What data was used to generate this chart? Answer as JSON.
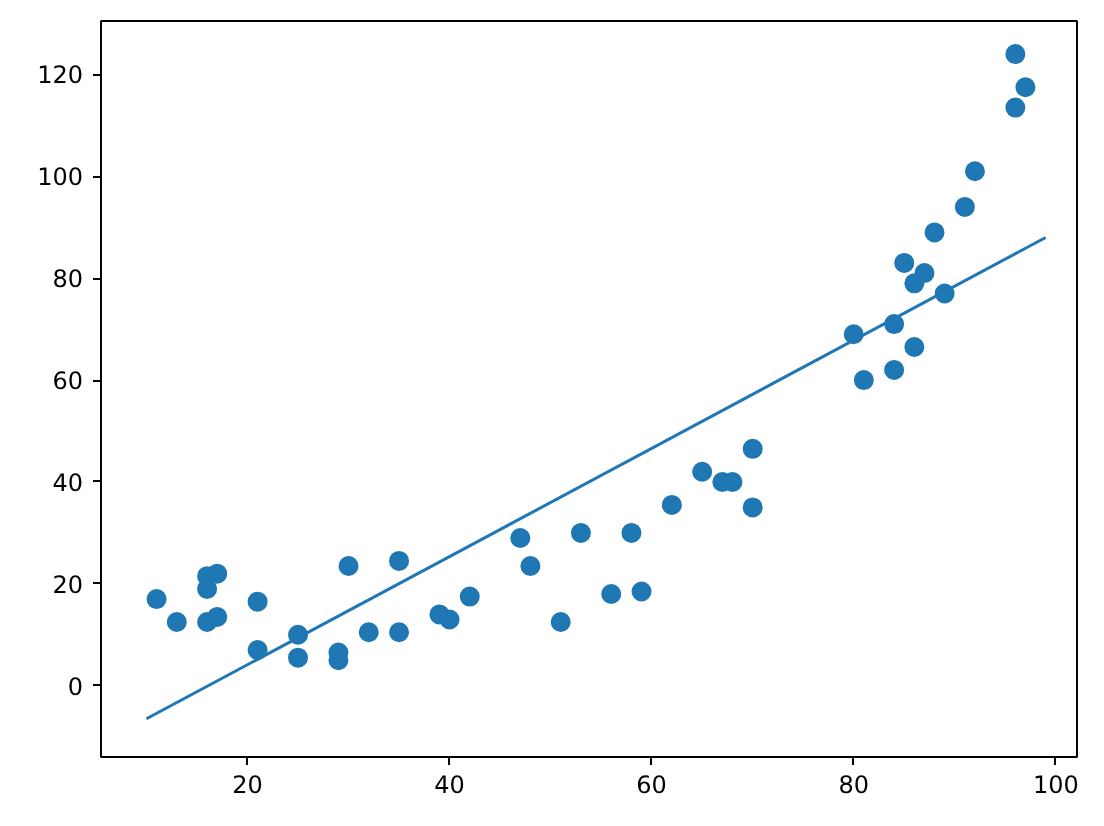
{
  "chart_data": {
    "type": "scatter",
    "xlim": [
      5.5,
      102.1
    ],
    "ylim": [
      -14,
      130.5
    ],
    "xticks": [
      20,
      40,
      60,
      80,
      100
    ],
    "yticks": [
      0,
      20,
      40,
      60,
      80,
      100,
      120
    ],
    "grid": false,
    "series": [
      {
        "marker": "circle",
        "color": "#1f77b4",
        "x": [
          11,
          13,
          16,
          16,
          16,
          17,
          17,
          21,
          21,
          25,
          25,
          29,
          29,
          30,
          32,
          35,
          35,
          39,
          40,
          42,
          47,
          48,
          51,
          53,
          56,
          58,
          59,
          62,
          65,
          67,
          68,
          70,
          70,
          80,
          81,
          84,
          84,
          85,
          86,
          87,
          86,
          88,
          89,
          91,
          92,
          96,
          96,
          97
        ],
        "values": [
          17,
          12.5,
          21.5,
          19,
          12.5,
          22,
          13.5,
          16.5,
          7,
          10,
          5.5,
          6.5,
          5,
          23.5,
          10.5,
          24.5,
          10.5,
          14,
          13,
          17.5,
          29,
          23.5,
          12.5,
          30,
          18,
          30,
          18.5,
          35.5,
          42,
          40,
          40,
          46.5,
          35,
          69,
          60,
          71,
          62,
          83,
          79,
          81,
          66.5,
          89,
          77,
          94,
          101,
          124,
          113.5,
          117.5
        ]
      },
      {
        "type": "line",
        "marker": "none",
        "color": "#1f77b4",
        "x": [
          10,
          99
        ],
        "values": [
          -6.5,
          88
        ]
      }
    ]
  }
}
